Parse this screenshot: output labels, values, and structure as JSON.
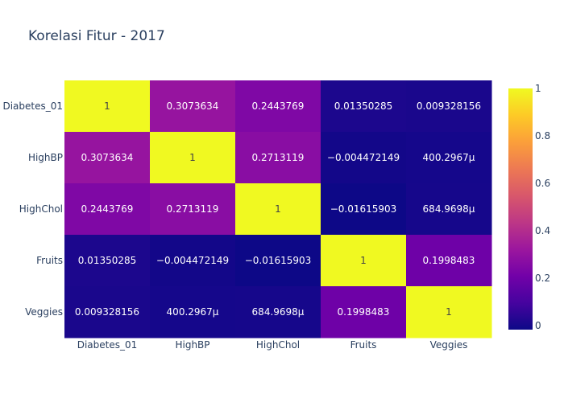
{
  "chart_data": {
    "type": "heatmap",
    "title": "Korelasi Fitur - 2017",
    "x": [
      "Diabetes_01",
      "HighBP",
      "HighChol",
      "Fruits",
      "Veggies"
    ],
    "y": [
      "Diabetes_01",
      "HighBP",
      "HighChol",
      "Fruits",
      "Veggies"
    ],
    "z": [
      [
        1,
        0.3073634,
        0.2443769,
        0.01350285,
        0.009328156
      ],
      [
        0.3073634,
        1,
        0.2713119,
        -0.004472149,
        0.0004002967
      ],
      [
        0.2443769,
        0.2713119,
        1,
        -0.01615903,
        0.0006849698
      ],
      [
        0.01350285,
        -0.004472149,
        -0.01615903,
        1,
        0.1998483
      ],
      [
        0.009328156,
        0.0004002967,
        0.0006849698,
        0.1998483,
        1
      ]
    ],
    "text": [
      [
        "1",
        "0.3073634",
        "0.2443769",
        "0.01350285",
        "0.009328156"
      ],
      [
        "0.3073634",
        "1",
        "0.2713119",
        "−0.004472149",
        "400.2967μ"
      ],
      [
        "0.2443769",
        "0.2713119",
        "1",
        "−0.01615903",
        "684.9698μ"
      ],
      [
        "0.01350285",
        "−0.004472149",
        "−0.01615903",
        "1",
        "0.1998483"
      ],
      [
        "0.009328156",
        "400.2967μ",
        "684.9698μ",
        "0.1998483",
        "1"
      ]
    ],
    "zrange": [
      -0.01615903,
      1
    ],
    "colorscale": [
      "#0d0887",
      "#46039f",
      "#7201a8",
      "#9c179e",
      "#bd3786",
      "#d8576b",
      "#ed7953",
      "#fb9f3a",
      "#fdca26",
      "#f0f921"
    ],
    "colorbar": {
      "tickvals": [
        0,
        0.2,
        0.4,
        0.6,
        0.8,
        1
      ],
      "ticktext": [
        "0",
        "0.2",
        "0.4",
        "0.6",
        "0.8",
        "1"
      ]
    }
  }
}
